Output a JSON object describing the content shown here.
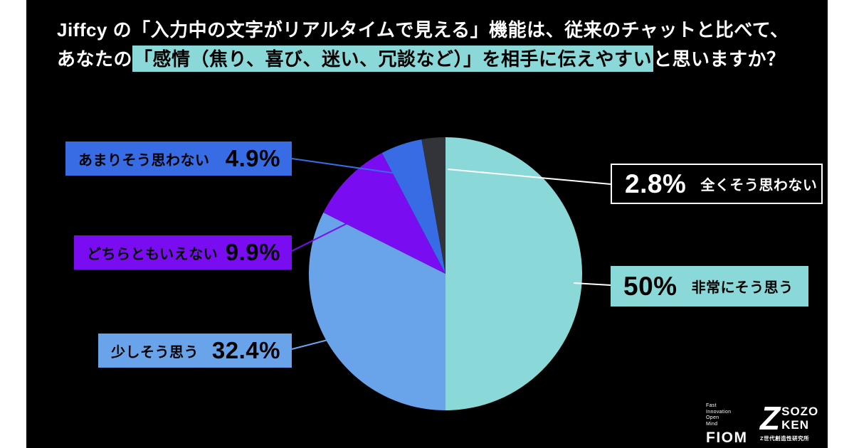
{
  "colors": {
    "background": "#ffffff",
    "panel": "#000000",
    "title_text": "#ffffff",
    "highlight": "#8BD8D8",
    "callout_text": "#000000",
    "leader_white": "#ffffff"
  },
  "title": {
    "line1": "Jiffcy の「入力中の文字がリアルタイムで見える」機能は、従来のチャットと比べて、",
    "line2_pre": "あなたの",
    "line2_highlight": "「感情（焦り、喜び、迷い、冗談など）」を相手に伝えやすい",
    "line2_post": "と思いますか？"
  },
  "chart_data": {
    "type": "pie",
    "title": "Jiffcy の「入力中の文字がリアルタイムで見える」機能は、従来のチャットと比べて、あなたの「感情（焦り、喜び、迷い、冗談など）」を相手に伝えやすいと思いますか？",
    "direction": "clockwise",
    "start_angle_deg": 0,
    "legend_position": "callout-labels",
    "slices": [
      {
        "label": "非常にそう思う",
        "value": 50,
        "display": "50%",
        "color": "#8BD8D8"
      },
      {
        "label": "少しそう思う",
        "value": 32.4,
        "display": "32.4%",
        "color": "#69A4EA"
      },
      {
        "label": "どちらともいえない",
        "value": 9.9,
        "display": "9.9%",
        "color": "#7A0CF2"
      },
      {
        "label": "あまりそう思わない",
        "value": 4.9,
        "display": "4.9%",
        "color": "#376CE5"
      },
      {
        "label": "全くそう思わない",
        "value": 2.8,
        "display": "2.8%",
        "color": "#33333A"
      }
    ]
  },
  "logos": {
    "fiom_words": [
      "Fast",
      "Innovation",
      "Open",
      "Mind"
    ],
    "fiom_name": "FIOM",
    "sozo_z": "Z",
    "sozo_line1": "SOZO",
    "sozo_line2": "KEN",
    "sozo_caption": "Z世代創造性研究所"
  }
}
